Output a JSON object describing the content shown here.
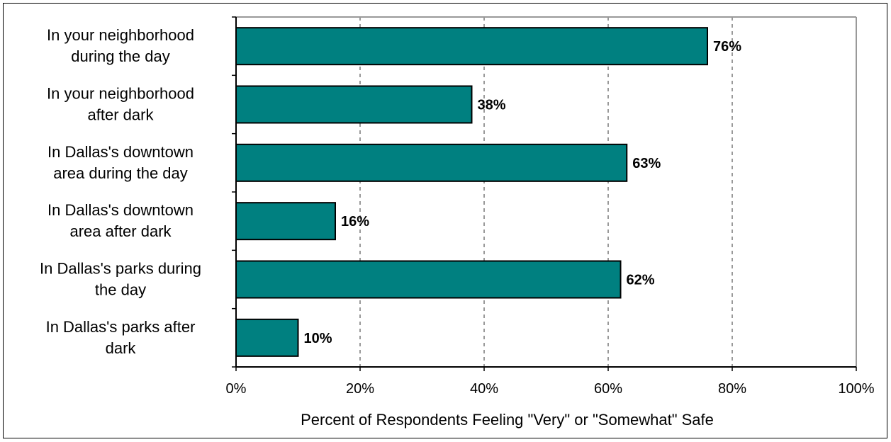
{
  "chart_data": {
    "type": "bar",
    "orientation": "horizontal",
    "categories": [
      [
        "In your neighborhood",
        "during the day"
      ],
      [
        "In your neighborhood",
        "after dark"
      ],
      [
        "In Dallas's downtown",
        "area during the day"
      ],
      [
        "In Dallas's downtown",
        "area after dark"
      ],
      [
        "In Dallas's parks during",
        "the day"
      ],
      [
        "In Dallas's parks after",
        "dark"
      ]
    ],
    "values": [
      76,
      38,
      63,
      16,
      62,
      10
    ],
    "value_labels": [
      "76%",
      "38%",
      "63%",
      "16%",
      "62%",
      "10%"
    ],
    "xlim": [
      0,
      100
    ],
    "x_ticks": [
      0,
      20,
      40,
      60,
      80,
      100
    ],
    "x_tick_labels": [
      "0%",
      "20%",
      "40%",
      "60%",
      "80%",
      "100%"
    ],
    "xlabel": "Percent of Respondents Feeling \"Very\" or \"Somewhat\" Safe",
    "title": "",
    "grid": "vertical-dashed",
    "legend": "none",
    "colors": {
      "bar": "#008080",
      "bar_border": "#000000",
      "grid": "#999999",
      "plot_border": "#999999"
    }
  }
}
